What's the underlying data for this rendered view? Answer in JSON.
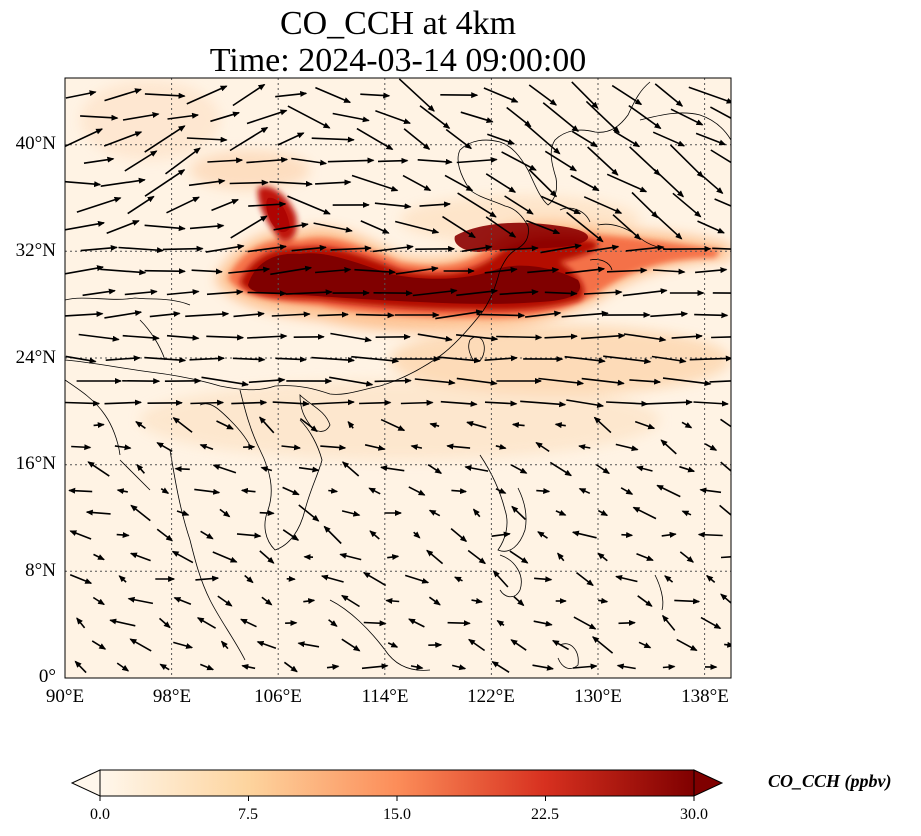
{
  "title": {
    "line1": "CO_CCH at 4km",
    "line2": "Time: 2024-03-14 09:00:00"
  },
  "map": {
    "lon_range": [
      90,
      140
    ],
    "lat_range": [
      0,
      45
    ],
    "x_ticks": [
      "90°E",
      "98°E",
      "106°E",
      "114°E",
      "122°E",
      "130°E",
      "138°E"
    ],
    "y_ticks": [
      "0°",
      "8°N",
      "16°N",
      "24°N",
      "32°N",
      "40°N"
    ],
    "gridlines": true,
    "variable": "CO_CCH",
    "plume": "high CO (≥30 ppbv) band along ~28–33°N from ~103°E to ~132°E, with branches near 34–36°N 106°E and 33°N 120°E",
    "wind_vectors": "westerly flow north of ~20°N; weaker, mixed winds south"
  },
  "colorbar": {
    "label": "CO_CCH (ppbv)",
    "ticks": [
      "0.0",
      "7.5",
      "15.0",
      "22.5",
      "30.0"
    ],
    "min": 0,
    "max": 30,
    "cmap": "OrRd",
    "extend": "both",
    "colors": [
      "#fff7ec",
      "#fdd49e",
      "#fc8d59",
      "#d7301f",
      "#7f0000"
    ]
  }
}
